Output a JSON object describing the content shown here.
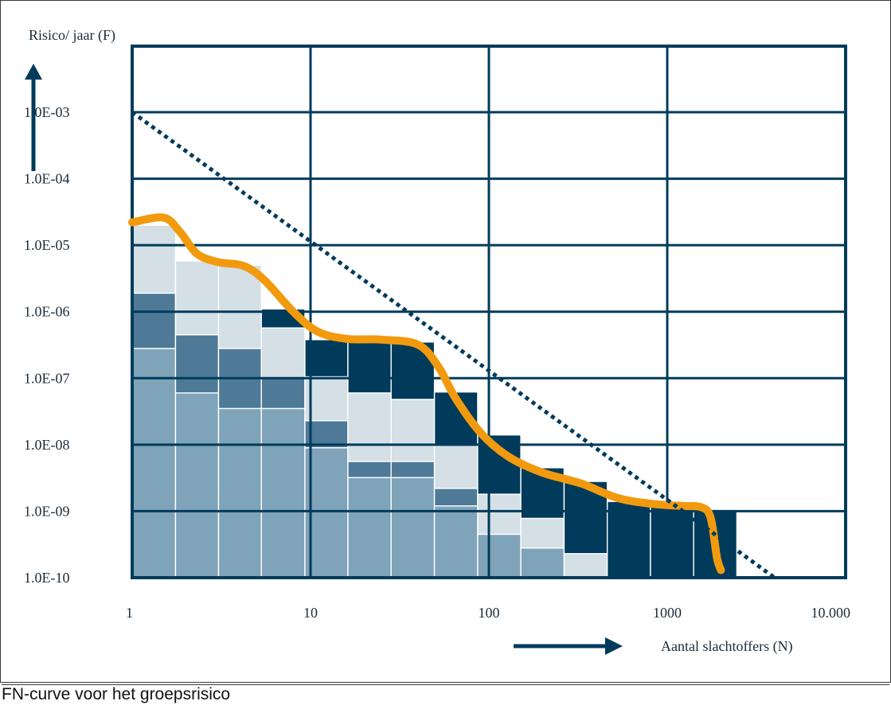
{
  "caption": "FN-curve voor het groepsrisico",
  "colors": {
    "navy": "#003B5C",
    "dark_steel": "#4E7A97",
    "light_steel": "#7FA3B8",
    "pale": "#D4DFE6",
    "orange": "#F29A0E",
    "text": "#1b2b3a"
  },
  "chart_data": {
    "type": "bar",
    "title": "",
    "ylabel": "Risico/ jaar (F)",
    "xlabel": "Aantal slachtoffers (N)",
    "x_scale": "log",
    "y_scale": "log",
    "xlim": [
      1,
      10000
    ],
    "ylim": [
      1e-10,
      0.01
    ],
    "grid": true,
    "x_tick_labels": [
      "1",
      "10",
      "100",
      "1000",
      "10.000"
    ],
    "y_tick_labels": [
      "1.0E-03",
      "1.0E-04",
      "1.0E-05",
      "1.0E-06",
      "1.0E-07",
      "1.0E-08",
      "1.0E-09",
      "1.0E-10"
    ],
    "y_tick_values": [
      0.001,
      0.0001,
      1e-05,
      1e-06,
      1e-07,
      1e-08,
      1e-09,
      1e-10
    ],
    "x_tick_values": [
      1,
      10,
      100,
      1000,
      10000
    ],
    "bars": [
      {
        "x0": 1.0,
        "x1": 1.75,
        "segments": [
          {
            "tone": "light_steel",
            "top": 2.8e-07
          },
          {
            "tone": "dark_steel",
            "top": 1.9e-06
          },
          {
            "tone": "pale",
            "top": 2e-05
          }
        ]
      },
      {
        "x0": 1.75,
        "x1": 3.05,
        "segments": [
          {
            "tone": "light_steel",
            "top": 6e-08
          },
          {
            "tone": "dark_steel",
            "top": 4.5e-07
          },
          {
            "tone": "pale",
            "top": 5.8e-06
          }
        ]
      },
      {
        "x0": 3.05,
        "x1": 5.3,
        "segments": [
          {
            "tone": "light_steel",
            "top": 3.5e-08
          },
          {
            "tone": "dark_steel",
            "top": 2.8e-07
          },
          {
            "tone": "pale",
            "top": 5e-06
          }
        ]
      },
      {
        "x0": 5.3,
        "x1": 9.3,
        "segments": [
          {
            "tone": "light_steel",
            "top": 3.5e-08
          },
          {
            "tone": "dark_steel",
            "top": 1e-07
          },
          {
            "tone": "pale",
            "top": 5.7e-07
          },
          {
            "tone": "navy",
            "top": 1.1e-06
          }
        ]
      },
      {
        "x0": 9.3,
        "x1": 16.2,
        "segments": [
          {
            "tone": "light_steel",
            "top": 9e-09
          },
          {
            "tone": "dark_steel",
            "top": 2.3e-08
          },
          {
            "tone": "pale",
            "top": 1.05e-07
          },
          {
            "tone": "navy",
            "top": 3.8e-07
          }
        ]
      },
      {
        "x0": 16.2,
        "x1": 28.3,
        "segments": [
          {
            "tone": "light_steel",
            "top": 3.2e-09
          },
          {
            "tone": "dark_steel",
            "top": 5.6e-09
          },
          {
            "tone": "pale",
            "top": 6e-08
          },
          {
            "tone": "navy",
            "top": 3.5e-07
          }
        ]
      },
      {
        "x0": 28.3,
        "x1": 49.5,
        "segments": [
          {
            "tone": "light_steel",
            "top": 3.2e-09
          },
          {
            "tone": "dark_steel",
            "top": 5.6e-09
          },
          {
            "tone": "pale",
            "top": 4.8e-08
          },
          {
            "tone": "navy",
            "top": 3.5e-07
          }
        ]
      },
      {
        "x0": 49.5,
        "x1": 86.5,
        "segments": [
          {
            "tone": "light_steel",
            "top": 1.2e-09
          },
          {
            "tone": "dark_steel",
            "top": 2.2e-09
          },
          {
            "tone": "pale",
            "top": 1e-08
          },
          {
            "tone": "navy",
            "top": 6.2e-08
          }
        ]
      },
      {
        "x0": 86.5,
        "x1": 151,
        "segments": [
          {
            "tone": "light_steel",
            "top": 4.5e-10
          },
          {
            "tone": "pale",
            "top": 1.8e-09
          },
          {
            "tone": "navy",
            "top": 1.4e-08
          }
        ]
      },
      {
        "x0": 151,
        "x1": 264,
        "segments": [
          {
            "tone": "light_steel",
            "top": 2.8e-10
          },
          {
            "tone": "pale",
            "top": 7.8e-10
          },
          {
            "tone": "navy",
            "top": 4.5e-09
          }
        ]
      },
      {
        "x0": 264,
        "x1": 461,
        "segments": [
          {
            "tone": "pale",
            "top": 2.3e-10
          },
          {
            "tone": "navy",
            "top": 2.8e-09
          }
        ]
      },
      {
        "x0": 461,
        "x1": 805,
        "segments": [
          {
            "tone": "navy",
            "top": 1.4e-09
          }
        ]
      },
      {
        "x0": 805,
        "x1": 1406,
        "segments": [
          {
            "tone": "navy",
            "top": 1.2e-09
          }
        ]
      },
      {
        "x0": 1406,
        "x1": 2456,
        "segments": [
          {
            "tone": "navy",
            "top": 1e-09
          }
        ]
      }
    ],
    "series": [
      {
        "kind": "curve",
        "points": [
          [
            1.0,
            2.2e-05
          ],
          [
            1.5,
            2.6e-05
          ],
          [
            1.85,
            1.6e-05
          ],
          [
            2.3,
            7.5e-06
          ],
          [
            3.0,
            5.6e-06
          ],
          [
            4.2,
            4.9e-06
          ],
          [
            5.5,
            3e-06
          ],
          [
            8.0,
            1e-06
          ],
          [
            11,
            5e-07
          ],
          [
            16,
            3.9e-07
          ],
          [
            25,
            3.8e-07
          ],
          [
            40,
            3.2e-07
          ],
          [
            52,
            1.5e-07
          ],
          [
            65,
            5e-08
          ],
          [
            90,
            1.5e-08
          ],
          [
            130,
            6.5e-09
          ],
          [
            200,
            3.8e-09
          ],
          [
            330,
            2.6e-09
          ],
          [
            520,
            1.6e-09
          ],
          [
            800,
            1.3e-09
          ],
          [
            1200,
            1.2e-09
          ],
          [
            1550,
            1.15e-09
          ],
          [
            1750,
            8e-10
          ],
          [
            1900,
            2e-10
          ],
          [
            2000,
            1.3e-10
          ]
        ]
      },
      {
        "kind": "limit-line",
        "points": [
          [
            1,
            0.001
          ],
          [
            4000,
            1e-10
          ]
        ]
      }
    ]
  }
}
